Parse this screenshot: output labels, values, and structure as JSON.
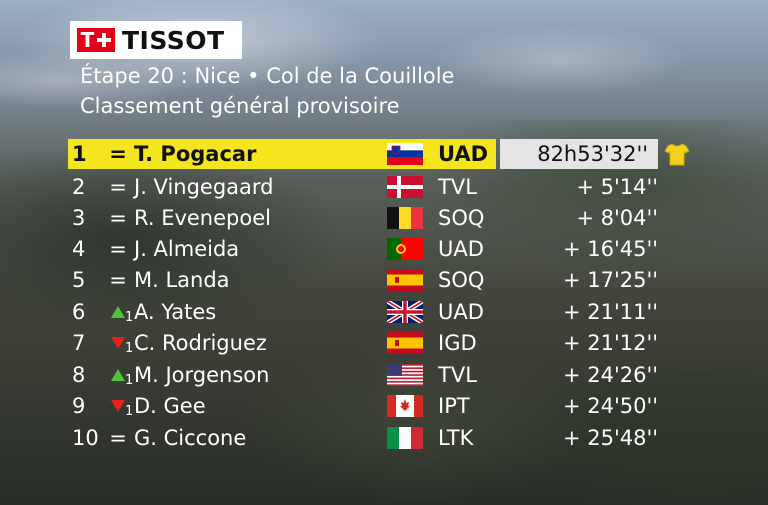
{
  "logo": {
    "wordmark": "TISSOT"
  },
  "header": {
    "stage": "Étape 20 : Nice • Col de la Couillole",
    "subtitle": "Classement général provisoire"
  },
  "rows": [
    {
      "rank": "1",
      "move": "=",
      "move_num": "",
      "name": "T. Pogacar",
      "flag": "SI",
      "team": "UAD",
      "time": "82h53'32''"
    },
    {
      "rank": "2",
      "move": "=",
      "move_num": "",
      "name": "J. Vingegaard",
      "flag": "DK",
      "team": "TVL",
      "time": "+  5'14''"
    },
    {
      "rank": "3",
      "move": "=",
      "move_num": "",
      "name": "R. Evenepoel",
      "flag": "BE",
      "team": "SOQ",
      "time": "+  8'04''"
    },
    {
      "rank": "4",
      "move": "=",
      "move_num": "",
      "name": "J. Almeida",
      "flag": "PT",
      "team": "UAD",
      "time": "+ 16'45''"
    },
    {
      "rank": "5",
      "move": "=",
      "move_num": "",
      "name": "M. Landa",
      "flag": "ES",
      "team": "SOQ",
      "time": "+ 17'25''"
    },
    {
      "rank": "6",
      "move": "up",
      "move_num": "1",
      "name": "A. Yates",
      "flag": "GB",
      "team": "UAD",
      "time": "+ 21'11''"
    },
    {
      "rank": "7",
      "move": "down",
      "move_num": "1",
      "name": "C. Rodriguez",
      "flag": "ES",
      "team": "IGD",
      "time": "+ 21'12''"
    },
    {
      "rank": "8",
      "move": "up",
      "move_num": "1",
      "name": "M. Jorgenson",
      "flag": "US",
      "team": "TVL",
      "time": "+ 24'26''"
    },
    {
      "rank": "9",
      "move": "down",
      "move_num": "1",
      "name": "D. Gee",
      "flag": "CA",
      "team": "IPT",
      "time": "+ 24'50''"
    },
    {
      "rank": "10",
      "move": "=",
      "move_num": "",
      "name": "G. Ciccone",
      "flag": "IT",
      "team": "LTK",
      "time": "+ 25'48''"
    }
  ],
  "colors": {
    "leader_bar": "#f5e51c",
    "leader_time_box": "#e4e4e4",
    "arrow_up": "#4fc33a",
    "arrow_down": "#e3231b",
    "brand_red": "#e2001a"
  },
  "icons": {
    "leader_jersey": "yellow-jersey-icon"
  }
}
